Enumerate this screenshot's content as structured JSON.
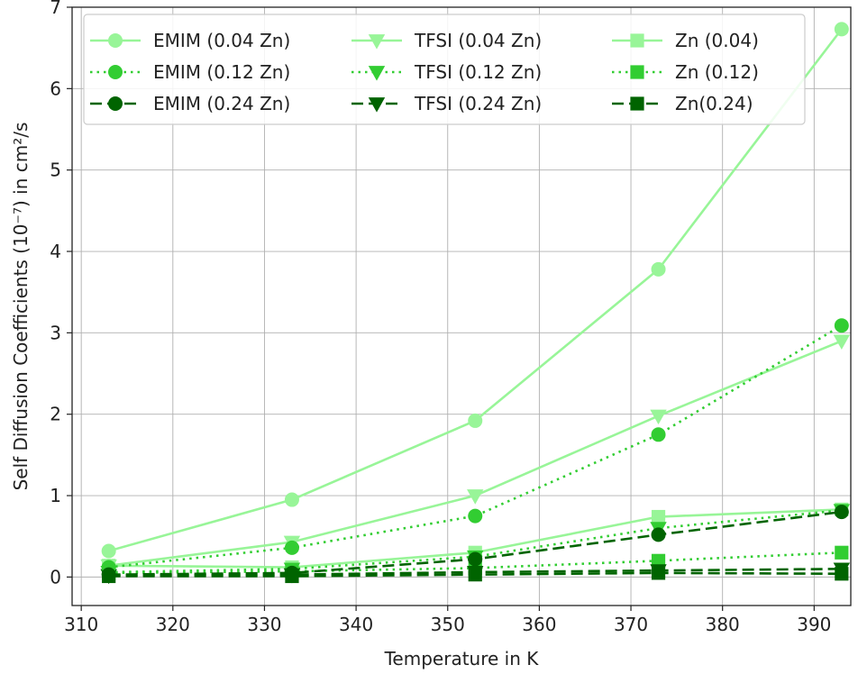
{
  "chart_data": {
    "type": "line",
    "title": "",
    "xlabel": "Temperature in K",
    "ylabel": "Self Diffusion Coefficients (10⁻⁷) in cm²/s",
    "xlim": [
      309,
      394
    ],
    "ylim": [
      -0.35,
      7.0
    ],
    "xticks": [
      310,
      320,
      330,
      340,
      350,
      360,
      370,
      380,
      390
    ],
    "yticks": [
      0,
      1,
      2,
      3,
      4,
      5,
      6,
      7
    ],
    "grid": true,
    "legend_position": "top",
    "x": [
      313,
      333,
      353,
      373,
      393
    ],
    "series": [
      {
        "name": "EMIM (0.04 Zn)",
        "color": "#98f598",
        "line": "solid",
        "marker": "circle",
        "values": [
          0.32,
          0.95,
          1.92,
          3.78,
          6.73
        ]
      },
      {
        "name": "EMIM (0.12 Zn)",
        "color": "#32cd32",
        "line": "dotted",
        "marker": "circle",
        "values": [
          0.12,
          0.36,
          0.75,
          1.75,
          3.09
        ]
      },
      {
        "name": "EMIM (0.24 Zn)",
        "color": "#006400",
        "line": "dashed",
        "marker": "circle",
        "values": [
          0.03,
          0.05,
          0.22,
          0.52,
          0.8
        ]
      },
      {
        "name": "TFSI (0.04 Zn)",
        "color": "#98f598",
        "line": "solid",
        "marker": "triangle",
        "values": [
          0.14,
          0.43,
          1.0,
          1.98,
          2.9
        ]
      },
      {
        "name": "TFSI (0.12 Zn)",
        "color": "#32cd32",
        "line": "dotted",
        "marker": "triangle",
        "values": [
          0.06,
          0.1,
          0.25,
          0.6,
          0.82
        ]
      },
      {
        "name": "TFSI (0.24 Zn)",
        "color": "#006400",
        "line": "dashed",
        "marker": "triangle",
        "values": [
          0.02,
          0.03,
          0.06,
          0.08,
          0.1
        ]
      },
      {
        "name": "Zn (0.04)",
        "color": "#98f598",
        "line": "solid",
        "marker": "square",
        "values": [
          0.14,
          0.12,
          0.3,
          0.74,
          0.83
        ]
      },
      {
        "name": "Zn (0.12)",
        "color": "#32cd32",
        "line": "dotted",
        "marker": "square",
        "values": [
          0.05,
          0.07,
          0.11,
          0.2,
          0.3
        ]
      },
      {
        "name": "Zn(0.24)",
        "color": "#006400",
        "line": "dashed",
        "marker": "square",
        "values": [
          0.01,
          0.01,
          0.03,
          0.05,
          0.04
        ]
      }
    ]
  }
}
